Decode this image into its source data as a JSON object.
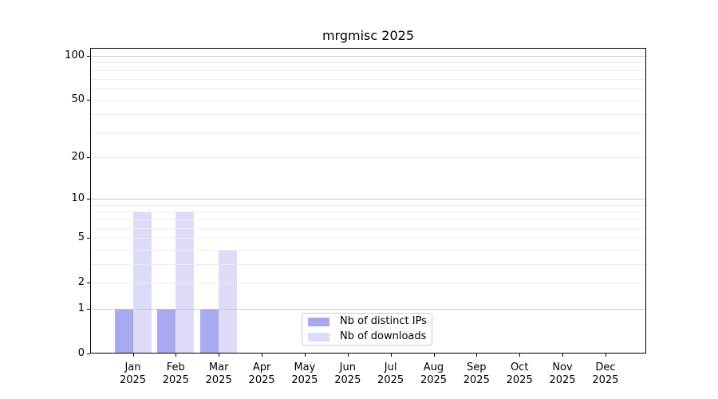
{
  "chart_data": {
    "type": "bar",
    "title": "mrgmisc 2025",
    "xlabel": "",
    "ylabel": "",
    "categories": [
      "Jan",
      "Feb",
      "Mar",
      "Apr",
      "May",
      "Jun",
      "Jul",
      "Aug",
      "Sep",
      "Oct",
      "Nov",
      "Dec"
    ],
    "x_year_label": "2025",
    "series": [
      {
        "name": "Nb of distinct IPs",
        "color": "#a9a9f1",
        "values": [
          1,
          1,
          1,
          0,
          0,
          0,
          0,
          0,
          0,
          0,
          0,
          0
        ]
      },
      {
        "name": "Nb of downloads",
        "color": "#dcdcf8",
        "values": [
          8,
          8,
          4,
          0,
          0,
          0,
          0,
          0,
          0,
          0,
          0,
          0
        ]
      }
    ],
    "y_axis": {
      "scale": "log1p",
      "tick_values": [
        0,
        1,
        2,
        5,
        10,
        20,
        50,
        100
      ],
      "ylim": [
        0,
        113
      ],
      "major_gridlines": [
        1,
        10,
        100
      ],
      "minor_gridlines": [
        2,
        3,
        4,
        5,
        6,
        7,
        8,
        9,
        20,
        30,
        40,
        50,
        60,
        70,
        80,
        90
      ]
    },
    "grid": true,
    "legend_position": "inside-bottom-center"
  },
  "colors": {
    "bar_distinct_ips": "#a9a9f1",
    "bar_downloads": "#dcdcf8",
    "major_grid": "#c9c9c9",
    "minor_grid": "#ececec",
    "spine": "#000000",
    "legend_border": "#cccccc",
    "text": "#000000"
  }
}
